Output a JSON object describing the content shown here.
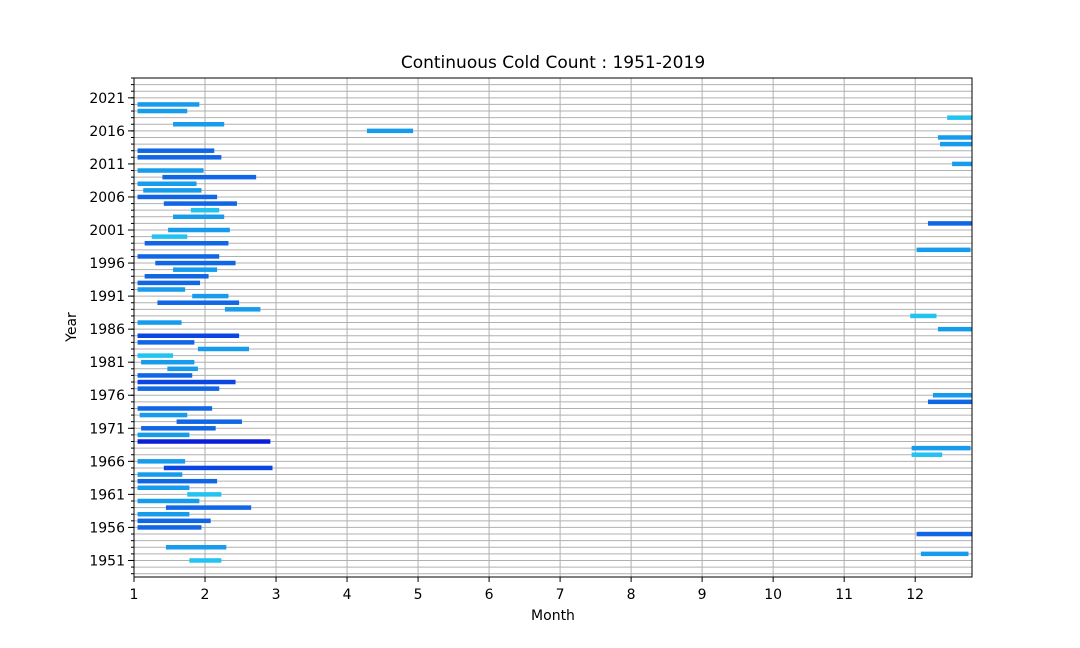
{
  "chart_data": {
    "type": "bar",
    "orientation": "horizontal-spans",
    "title": "Continuous Cold Count : 1951-2019",
    "xlabel": "Month",
    "ylabel": "Year",
    "xlim": [
      1,
      12.8
    ],
    "ylim": [
      1948.5,
      2024
    ],
    "grid": true,
    "x_ticks": [
      "1",
      "2",
      "3",
      "4",
      "5",
      "6",
      "7",
      "8",
      "9",
      "10",
      "11",
      "12"
    ],
    "y_ticks": [
      "1951",
      "1956",
      "1961",
      "1966",
      "1971",
      "1976",
      "1981",
      "1986",
      "1991",
      "1996",
      "2001",
      "2006",
      "2011",
      "2016",
      "2021"
    ],
    "colors": {
      "light": "#22c3f0",
      "medium": "#169bed",
      "dark": "#1166e6",
      "darker": "#0b46e0",
      "darkest": "#0a1fd8"
    },
    "spans": [
      {
        "year": 1951,
        "start": 1.78,
        "end": 2.23,
        "shade": "light"
      },
      {
        "year": 1952,
        "start": 12.08,
        "end": 12.75,
        "shade": "medium"
      },
      {
        "year": 1953,
        "start": 1.45,
        "end": 2.3,
        "shade": "medium"
      },
      {
        "year": 1955,
        "start": 12.02,
        "end": 12.8,
        "shade": "dark"
      },
      {
        "year": 1956,
        "start": 1.05,
        "end": 1.95,
        "shade": "dark"
      },
      {
        "year": 1957,
        "start": 1.05,
        "end": 2.08,
        "shade": "dark"
      },
      {
        "year": 1958,
        "start": 1.05,
        "end": 1.78,
        "shade": "medium"
      },
      {
        "year": 1959,
        "start": 1.45,
        "end": 2.65,
        "shade": "dark"
      },
      {
        "year": 1960,
        "start": 1.05,
        "end": 1.92,
        "shade": "medium"
      },
      {
        "year": 1961,
        "start": 1.75,
        "end": 2.23,
        "shade": "light"
      },
      {
        "year": 1962,
        "start": 1.05,
        "end": 1.78,
        "shade": "medium"
      },
      {
        "year": 1963,
        "start": 1.05,
        "end": 2.17,
        "shade": "dark"
      },
      {
        "year": 1964,
        "start": 1.05,
        "end": 1.68,
        "shade": "medium"
      },
      {
        "year": 1965,
        "start": 1.42,
        "end": 2.95,
        "shade": "darker"
      },
      {
        "year": 1966,
        "start": 1.05,
        "end": 1.72,
        "shade": "medium"
      },
      {
        "year": 1967,
        "start": 11.95,
        "end": 12.38,
        "shade": "light"
      },
      {
        "year": 1968,
        "start": 11.95,
        "end": 12.78,
        "shade": "medium"
      },
      {
        "year": 1969,
        "start": 1.05,
        "end": 2.92,
        "shade": "darkest"
      },
      {
        "year": 1970,
        "start": 1.05,
        "end": 1.78,
        "shade": "medium"
      },
      {
        "year": 1971,
        "start": 1.1,
        "end": 2.15,
        "shade": "dark"
      },
      {
        "year": 1972,
        "start": 1.6,
        "end": 2.52,
        "shade": "dark"
      },
      {
        "year": 1973,
        "start": 1.08,
        "end": 1.75,
        "shade": "medium"
      },
      {
        "year": 1974,
        "start": 1.05,
        "end": 2.1,
        "shade": "dark"
      },
      {
        "year": 1975,
        "start": 12.18,
        "end": 12.8,
        "shade": "dark"
      },
      {
        "year": 1976,
        "start": 12.25,
        "end": 12.8,
        "shade": "medium"
      },
      {
        "year": 1977,
        "start": 1.05,
        "end": 2.2,
        "shade": "dark"
      },
      {
        "year": 1978,
        "start": 1.05,
        "end": 2.43,
        "shade": "darker"
      },
      {
        "year": 1979,
        "start": 1.05,
        "end": 1.82,
        "shade": "dark"
      },
      {
        "year": 1980,
        "start": 1.47,
        "end": 1.9,
        "shade": "medium"
      },
      {
        "year": 1981,
        "start": 1.1,
        "end": 1.85,
        "shade": "medium"
      },
      {
        "year": 1982,
        "start": 1.05,
        "end": 1.55,
        "shade": "light"
      },
      {
        "year": 1983,
        "start": 1.9,
        "end": 2.62,
        "shade": "medium"
      },
      {
        "year": 1984,
        "start": 1.05,
        "end": 1.85,
        "shade": "dark"
      },
      {
        "year": 1985,
        "start": 1.05,
        "end": 2.48,
        "shade": "darker"
      },
      {
        "year": 1986,
        "start": 12.32,
        "end": 12.8,
        "shade": "medium"
      },
      {
        "year": 1987,
        "start": 1.05,
        "end": 1.67,
        "shade": "medium"
      },
      {
        "year": 1988,
        "start": 11.93,
        "end": 12.3,
        "shade": "light"
      },
      {
        "year": 1989,
        "start": 2.28,
        "end": 2.78,
        "shade": "medium"
      },
      {
        "year": 1990,
        "start": 1.33,
        "end": 2.48,
        "shade": "dark"
      },
      {
        "year": 1991,
        "start": 1.82,
        "end": 2.33,
        "shade": "medium"
      },
      {
        "year": 1992,
        "start": 1.05,
        "end": 1.72,
        "shade": "medium"
      },
      {
        "year": 1993,
        "start": 1.05,
        "end": 1.93,
        "shade": "dark"
      },
      {
        "year": 1994,
        "start": 1.15,
        "end": 2.05,
        "shade": "dark"
      },
      {
        "year": 1995,
        "start": 1.55,
        "end": 2.17,
        "shade": "medium"
      },
      {
        "year": 1996,
        "start": 1.3,
        "end": 2.43,
        "shade": "dark"
      },
      {
        "year": 1997,
        "start": 1.05,
        "end": 2.2,
        "shade": "dark"
      },
      {
        "year": 1998,
        "start": 12.02,
        "end": 12.78,
        "shade": "medium"
      },
      {
        "year": 1999,
        "start": 1.15,
        "end": 2.33,
        "shade": "dark"
      },
      {
        "year": 2000,
        "start": 1.25,
        "end": 1.75,
        "shade": "light"
      },
      {
        "year": 2001,
        "start": 1.48,
        "end": 2.35,
        "shade": "medium"
      },
      {
        "year": 2002,
        "start": 12.18,
        "end": 12.8,
        "shade": "dark"
      },
      {
        "year": 2003,
        "start": 1.55,
        "end": 2.27,
        "shade": "medium"
      },
      {
        "year": 2004,
        "start": 1.8,
        "end": 2.2,
        "shade": "light"
      },
      {
        "year": 2005,
        "start": 1.42,
        "end": 2.45,
        "shade": "dark"
      },
      {
        "year": 2006,
        "start": 1.05,
        "end": 2.17,
        "shade": "dark"
      },
      {
        "year": 2007,
        "start": 1.13,
        "end": 1.95,
        "shade": "medium"
      },
      {
        "year": 2008,
        "start": 1.05,
        "end": 1.88,
        "shade": "medium"
      },
      {
        "year": 2009,
        "start": 1.4,
        "end": 2.72,
        "shade": "dark"
      },
      {
        "year": 2010,
        "start": 1.05,
        "end": 1.98,
        "shade": "medium"
      },
      {
        "year": 2011,
        "start": 12.52,
        "end": 12.8,
        "shade": "medium"
      },
      {
        "year": 2012,
        "start": 1.05,
        "end": 2.23,
        "shade": "dark"
      },
      {
        "year": 2013,
        "start": 1.05,
        "end": 2.13,
        "shade": "dark"
      },
      {
        "year": 2014,
        "start": 12.35,
        "end": 12.8,
        "shade": "medium"
      },
      {
        "year": 2015,
        "start": 12.32,
        "end": 12.8,
        "shade": "medium"
      },
      {
        "year": 2016,
        "start": 4.28,
        "end": 4.93,
        "shade": "medium"
      },
      {
        "year": 2017,
        "start": 1.55,
        "end": 2.27,
        "shade": "medium"
      },
      {
        "year": 2018,
        "start": 12.45,
        "end": 12.8,
        "shade": "light"
      },
      {
        "year": 2019,
        "start": 1.05,
        "end": 1.75,
        "shade": "medium"
      },
      {
        "year": 2020,
        "start": 1.05,
        "end": 1.92,
        "shade": "medium"
      }
    ]
  }
}
